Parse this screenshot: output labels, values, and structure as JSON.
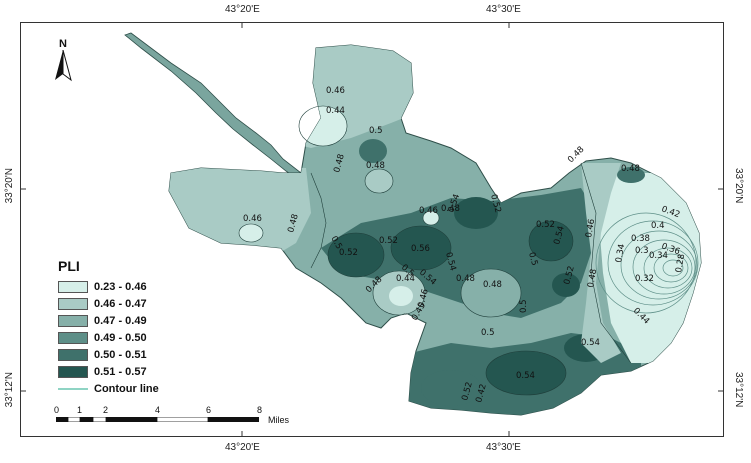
{
  "axes": {
    "top": [
      "43°20'E",
      "43°30'E"
    ],
    "bottom": [
      "43°20'E",
      "43°30'E"
    ],
    "left": [
      "33°20'N",
      "33°12'N"
    ],
    "right": [
      "33°20'N",
      "33°12'N"
    ]
  },
  "north_label": "N",
  "legend": {
    "title": "PLI",
    "classes": [
      {
        "label": "0.23 - 0.46",
        "color": "#d6efe9"
      },
      {
        "label": "0.46 - 0.47",
        "color": "#a9cbc5"
      },
      {
        "label": "0.47 - 0.49",
        "color": "#86b0a9"
      },
      {
        "label": "0.49 - 0.50",
        "color": "#5e8f88"
      },
      {
        "label": "0.50 - 0.51",
        "color": "#3f716b"
      },
      {
        "label": "0.51 - 0.57",
        "color": "#245650"
      }
    ],
    "contour_label": "Contour line",
    "contour_color": "#8fd4c4"
  },
  "scale": {
    "ticks": [
      "0",
      "1",
      "2",
      "4",
      "6",
      "8"
    ],
    "unit": "Miles"
  },
  "contour_labels": [
    "0.46",
    "0.44",
    "0.5",
    "0.48",
    "0.48",
    "0.46",
    "0.48",
    "0.5",
    "0.52",
    "0.46",
    "0.48",
    "0.54",
    "0.52",
    "0.56",
    "0.54",
    "0.52",
    "0.5",
    "0.54",
    "0.44",
    "0.48",
    "0.46",
    "0.48",
    "0.5",
    "0.52",
    "0.54",
    "0.5",
    "0.52",
    "0.46",
    "0.48",
    "0.42",
    "0.4",
    "0.38",
    "0.36",
    "0.34",
    "0.3",
    "0.28",
    "0.32",
    "0.34",
    "0.44",
    "0.48",
    "0.54",
    "0.54",
    "0.52",
    "0.42",
    "0.48",
    "0.48",
    "0.45",
    "0.5"
  ]
}
